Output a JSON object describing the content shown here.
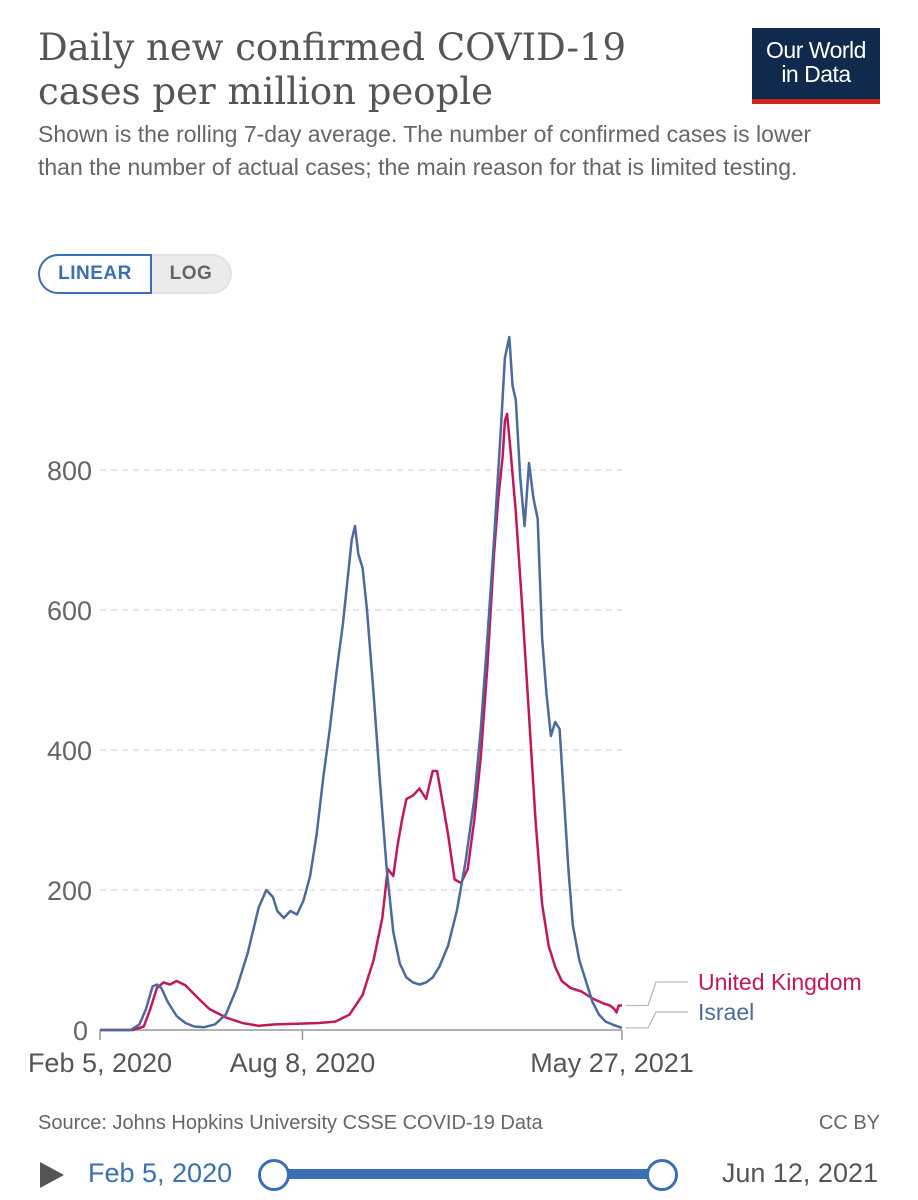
{
  "header": {
    "title": "Daily new confirmed COVID-19 cases per million people",
    "subtitle": "Shown is the rolling 7-day average. The number of confirmed cases is lower than the number of actual cases; the main reason for that is limited testing.",
    "logo_line1": "Our World",
    "logo_line2": "in Data"
  },
  "controls": {
    "linear_label": "LINEAR",
    "log_label": "LOG",
    "selected": "LINEAR"
  },
  "footer": {
    "source": "Source: Johns Hopkins University CSSE COVID-19 Data",
    "license": "CC BY"
  },
  "timeline": {
    "start_label": "Feb 5, 2020",
    "end_label": "Jun 12, 2021"
  },
  "chart_data": {
    "type": "line",
    "title": "Daily new confirmed COVID-19 cases per million people",
    "xlabel": "",
    "ylabel": "",
    "ylim": [
      0,
      1000
    ],
    "y_ticks": [
      0,
      200,
      400,
      600,
      800
    ],
    "x_domain_days": [
      0,
      477
    ],
    "x_ticks": [
      {
        "day": 0,
        "label": "Feb 5, 2020"
      },
      {
        "day": 185,
        "label": "Aug 8, 2020"
      },
      {
        "day": 477,
        "label": "May 27, 2021"
      }
    ],
    "grid": true,
    "legend": "right, end of lines",
    "x_unit": "days since Feb 5, 2020",
    "series": [
      {
        "name": "United Kingdom",
        "color": "#c2185b",
        "points": [
          [
            0,
            0
          ],
          [
            30,
            0
          ],
          [
            40,
            5
          ],
          [
            46,
            30
          ],
          [
            52,
            60
          ],
          [
            58,
            68
          ],
          [
            64,
            65
          ],
          [
            70,
            70
          ],
          [
            78,
            64
          ],
          [
            88,
            48
          ],
          [
            100,
            30
          ],
          [
            115,
            18
          ],
          [
            130,
            10
          ],
          [
            145,
            6
          ],
          [
            160,
            8
          ],
          [
            180,
            9
          ],
          [
            200,
            10
          ],
          [
            215,
            12
          ],
          [
            228,
            22
          ],
          [
            240,
            50
          ],
          [
            250,
            100
          ],
          [
            258,
            160
          ],
          [
            263,
            230
          ],
          [
            268,
            220
          ],
          [
            272,
            265
          ],
          [
            276,
            300
          ],
          [
            280,
            330
          ],
          [
            286,
            335
          ],
          [
            292,
            345
          ],
          [
            298,
            330
          ],
          [
            304,
            370
          ],
          [
            308,
            370
          ],
          [
            312,
            335
          ],
          [
            318,
            280
          ],
          [
            324,
            215
          ],
          [
            330,
            210
          ],
          [
            336,
            230
          ],
          [
            342,
            300
          ],
          [
            348,
            390
          ],
          [
            354,
            520
          ],
          [
            360,
            680
          ],
          [
            364,
            760
          ],
          [
            368,
            820
          ],
          [
            370,
            870
          ],
          [
            372,
            880
          ],
          [
            375,
            830
          ],
          [
            380,
            740
          ],
          [
            386,
            600
          ],
          [
            392,
            450
          ],
          [
            398,
            300
          ],
          [
            404,
            180
          ],
          [
            410,
            120
          ],
          [
            416,
            90
          ],
          [
            422,
            70
          ],
          [
            430,
            60
          ],
          [
            440,
            55
          ],
          [
            450,
            45
          ],
          [
            460,
            38
          ],
          [
            466,
            35
          ],
          [
            470,
            30
          ],
          [
            472,
            25
          ],
          [
            474,
            35
          ],
          [
            477,
            35
          ]
        ]
      },
      {
        "name": "Israel",
        "color": "#4c6a9c",
        "points": [
          [
            0,
            0
          ],
          [
            28,
            0
          ],
          [
            36,
            8
          ],
          [
            42,
            30
          ],
          [
            48,
            62
          ],
          [
            52,
            65
          ],
          [
            56,
            60
          ],
          [
            62,
            40
          ],
          [
            70,
            20
          ],
          [
            78,
            10
          ],
          [
            86,
            5
          ],
          [
            95,
            4
          ],
          [
            105,
            8
          ],
          [
            115,
            22
          ],
          [
            125,
            60
          ],
          [
            135,
            110
          ],
          [
            145,
            175
          ],
          [
            152,
            200
          ],
          [
            158,
            190
          ],
          [
            162,
            170
          ],
          [
            168,
            160
          ],
          [
            174,
            170
          ],
          [
            180,
            165
          ],
          [
            186,
            185
          ],
          [
            192,
            220
          ],
          [
            198,
            280
          ],
          [
            204,
            360
          ],
          [
            210,
            430
          ],
          [
            216,
            510
          ],
          [
            222,
            580
          ],
          [
            226,
            640
          ],
          [
            230,
            700
          ],
          [
            233,
            720
          ],
          [
            236,
            680
          ],
          [
            240,
            660
          ],
          [
            244,
            600
          ],
          [
            250,
            480
          ],
          [
            256,
            350
          ],
          [
            262,
            230
          ],
          [
            268,
            140
          ],
          [
            274,
            95
          ],
          [
            280,
            75
          ],
          [
            286,
            68
          ],
          [
            292,
            65
          ],
          [
            298,
            68
          ],
          [
            304,
            75
          ],
          [
            310,
            90
          ],
          [
            318,
            120
          ],
          [
            326,
            170
          ],
          [
            334,
            240
          ],
          [
            342,
            330
          ],
          [
            348,
            430
          ],
          [
            354,
            560
          ],
          [
            360,
            700
          ],
          [
            366,
            850
          ],
          [
            370,
            960
          ],
          [
            374,
            990
          ],
          [
            377,
            920
          ],
          [
            380,
            900
          ],
          [
            384,
            790
          ],
          [
            388,
            720
          ],
          [
            392,
            810
          ],
          [
            396,
            760
          ],
          [
            400,
            730
          ],
          [
            404,
            560
          ],
          [
            408,
            480
          ],
          [
            412,
            420
          ],
          [
            416,
            440
          ],
          [
            420,
            430
          ],
          [
            424,
            330
          ],
          [
            428,
            230
          ],
          [
            432,
            150
          ],
          [
            438,
            100
          ],
          [
            444,
            70
          ],
          [
            450,
            40
          ],
          [
            456,
            22
          ],
          [
            462,
            12
          ],
          [
            468,
            8
          ],
          [
            477,
            3
          ]
        ]
      }
    ]
  }
}
